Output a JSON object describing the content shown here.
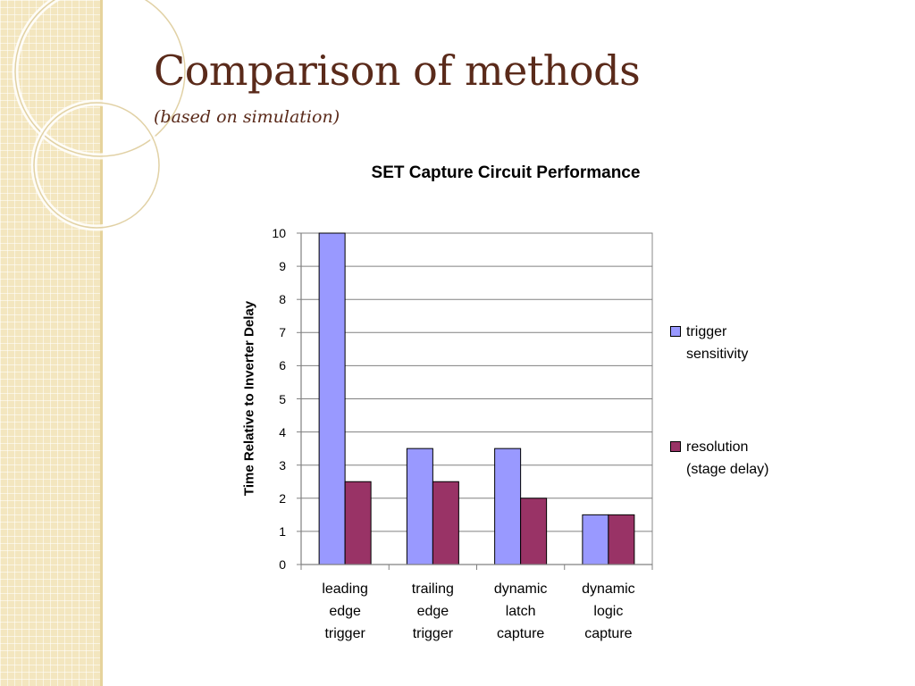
{
  "slide": {
    "title": "Comparison of methods",
    "subtitle": "(based on simulation)"
  },
  "colors": {
    "series1": "#9999ff",
    "series2": "#993366",
    "title": "#5a2a1a",
    "sidebar": "#f3e6bf"
  },
  "chart_data": {
    "type": "bar",
    "title": "SET Capture Circuit Performance",
    "ylabel": "Time Relative to Inverter Delay",
    "xlabel": "",
    "categories": [
      [
        "leading",
        "edge",
        "trigger"
      ],
      [
        "trailing",
        "edge",
        "trigger"
      ],
      [
        "dynamic",
        "latch",
        "capture"
      ],
      [
        "dynamic",
        "logic",
        "capture"
      ]
    ],
    "series": [
      {
        "name": [
          "trigger",
          "sensitivity"
        ],
        "values": [
          10,
          3.5,
          3.5,
          1.5
        ]
      },
      {
        "name": [
          "resolution",
          "(stage delay)"
        ],
        "values": [
          2.5,
          2.5,
          2,
          1.5
        ]
      }
    ],
    "ylim": [
      0,
      10
    ],
    "yticks": [
      "0",
      "1",
      "2",
      "3",
      "4",
      "5",
      "6",
      "7",
      "8",
      "9",
      "10"
    ],
    "grid": true,
    "legend": "right"
  }
}
